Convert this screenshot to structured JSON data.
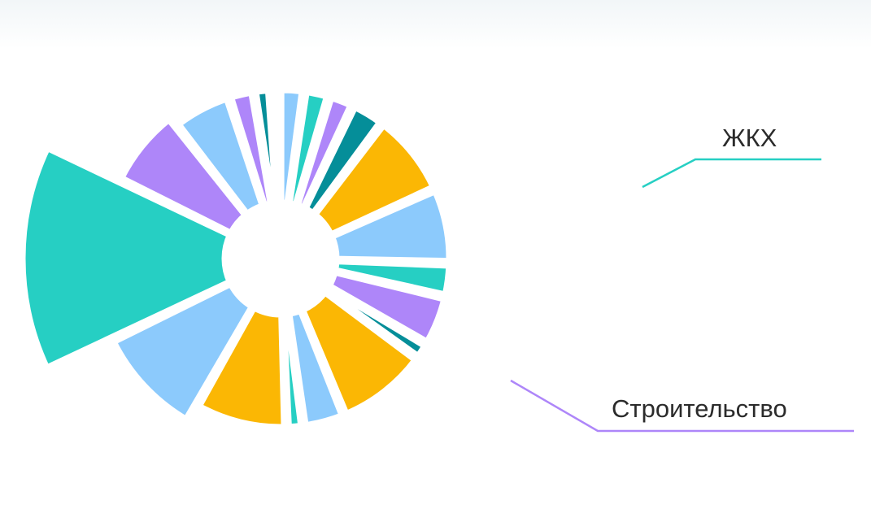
{
  "chart_data": {
    "type": "pie",
    "title": "",
    "colors": {
      "teal": "#26cfc3",
      "light_blue": "#8ccafc",
      "orange": "#fbb704",
      "purple": "#ae86f9",
      "dark_teal": "#058e99"
    },
    "slices": [
      {
        "value": 7,
        "color": "light_blue"
      },
      {
        "value": 3,
        "color": "purple"
      },
      {
        "value": 2,
        "color": "dark_teal"
      },
      {
        "value": 1,
        "color": "orange"
      },
      {
        "value": 3,
        "color": "light_blue"
      },
      {
        "value": 3,
        "color": "teal"
      },
      {
        "value": 3,
        "color": "purple"
      },
      {
        "value": 4,
        "color": "dark_teal"
      },
      {
        "value": 10,
        "color": "orange"
      },
      {
        "value": 9,
        "color": "light_blue"
      },
      {
        "value": 4,
        "color": "teal"
      },
      {
        "value": 6,
        "color": "purple"
      },
      {
        "value": 2,
        "color": "dark_teal"
      },
      {
        "value": 11,
        "color": "orange"
      },
      {
        "value": 5,
        "color": "light_blue"
      },
      {
        "value": 2,
        "color": "teal"
      },
      {
        "value": 11,
        "color": "orange"
      },
      {
        "value": 12,
        "color": "light_blue"
      },
      {
        "value": 18,
        "color": "teal"
      },
      {
        "value": 9,
        "color": "purple"
      }
    ],
    "annotations": [
      {
        "label": "ЖКХ",
        "color": "teal"
      },
      {
        "label": "Строительство",
        "color": "purple"
      }
    ]
  }
}
